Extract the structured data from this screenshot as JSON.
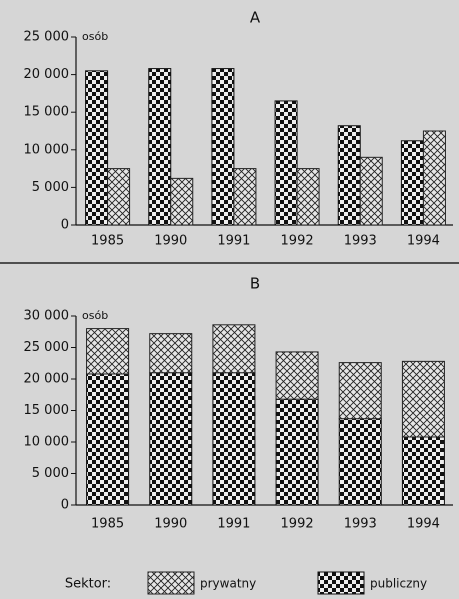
{
  "chart_data": [
    {
      "type": "bar",
      "title": "A",
      "unit": "osób",
      "categories": [
        "1985",
        "1990",
        "1991",
        "1992",
        "1993",
        "1994"
      ],
      "series": [
        {
          "pattern": "checker",
          "color": "#111111",
          "values": [
            20500,
            20800,
            20800,
            16500,
            13200,
            11200
          ]
        },
        {
          "pattern": "crosshatch",
          "color": "#222222",
          "values": [
            7500,
            6200,
            7500,
            7500,
            9000,
            12500
          ]
        }
      ],
      "ylim": [
        0,
        25000
      ],
      "yticks": [
        0,
        {
          "value": 5000,
          "label": "5 000"
        },
        {
          "value": 10000,
          "label": "10 000"
        },
        {
          "value": 15000,
          "label": "15 000"
        },
        {
          "value": 20000,
          "label": "20 000"
        },
        {
          "value": 25000,
          "label": "25 000"
        }
      ]
    },
    {
      "type": "bar",
      "stacked": true,
      "title": "B",
      "unit": "osób",
      "categories": [
        "1985",
        "1990",
        "1991",
        "1992",
        "1993",
        "1994"
      ],
      "series": [
        {
          "name": "publiczny",
          "pattern": "checker",
          "color": "#111111",
          "values": [
            20800,
            21000,
            21000,
            16800,
            13700,
            10800
          ]
        },
        {
          "name": "prywatny",
          "pattern": "crosshatch",
          "color": "#222222",
          "values": [
            7200,
            6200,
            7600,
            7500,
            8900,
            12000
          ]
        }
      ],
      "ylim": [
        0,
        30000
      ],
      "yticks": [
        0,
        {
          "value": 5000,
          "label": "5 000"
        },
        {
          "value": 10000,
          "label": "10 000"
        },
        {
          "value": 15000,
          "label": "15 000"
        },
        {
          "value": 20000,
          "label": "20 000"
        },
        {
          "value": 25000,
          "label": "25 000"
        },
        {
          "value": 30000,
          "label": "30 000"
        }
      ],
      "legend_title": "Sektor:"
    }
  ]
}
